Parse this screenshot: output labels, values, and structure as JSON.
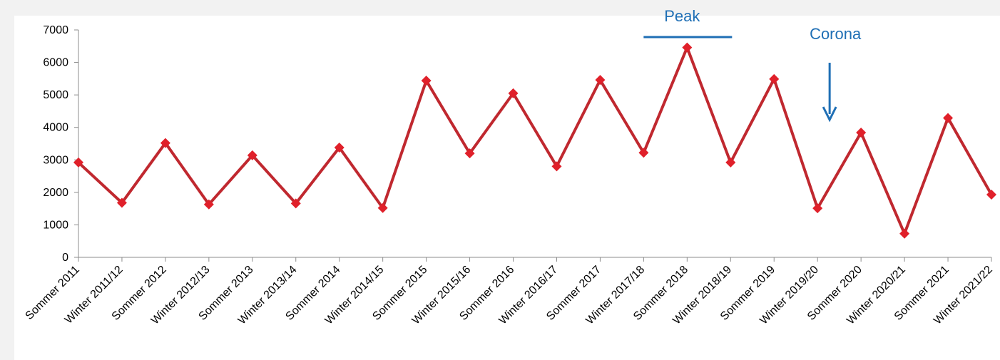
{
  "chart_data": {
    "type": "line",
    "categories": [
      "Sommer 2011",
      "Winter 2011/12",
      "Sommer 2012",
      "Winter 2012/13",
      "Sommer 2013",
      "Winter 2013/14",
      "Sommer 2014",
      "Winter 2014/15",
      "Sommer 2015",
      "Winter 2015/16",
      "Sommer 2016",
      "Winter 2016/17",
      "Sommer 2017",
      "Winter 2017/18",
      "Sommer 2018",
      "Winter 2018/19",
      "Sommer 2019",
      "Winter 2019/20",
      "Sommer 2020",
      "Winter 2020/21",
      "Sommer 2021",
      "Winter 2021/22"
    ],
    "series": [
      {
        "values": [
          2920,
          1680,
          3520,
          1630,
          3140,
          1660,
          3380,
          1520,
          5440,
          3200,
          5050,
          2800,
          5460,
          3220,
          6460,
          2920,
          5490,
          1510,
          3840,
          730,
          4290,
          1930
        ],
        "color": "#c0282f",
        "marker": "diamond"
      }
    ],
    "ylim": [
      0,
      7000
    ],
    "yticks": [
      0,
      1000,
      2000,
      3000,
      4000,
      5000,
      6000,
      7000
    ],
    "grid": false,
    "legend": "none",
    "annotations": [
      {
        "text": "Peak",
        "type": "line-marker",
        "at_category": "Sommer 2018",
        "color": "#1f6fb5"
      },
      {
        "text": "Corona",
        "type": "arrow-down",
        "at_category": "Sommer 2020",
        "color": "#1f6fb5"
      }
    ]
  }
}
